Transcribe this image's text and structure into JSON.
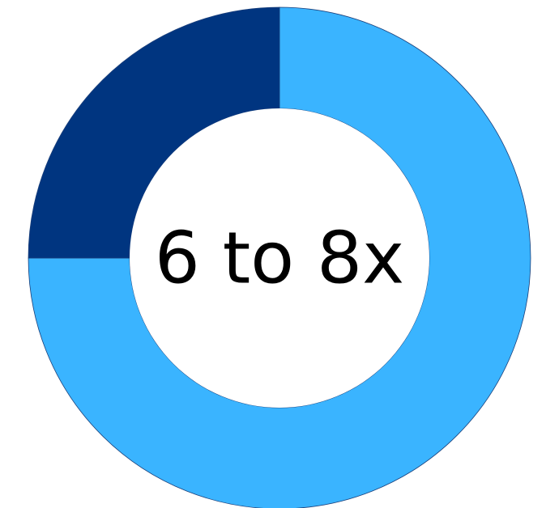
{
  "chart_data": {
    "type": "pie",
    "variant": "donut",
    "center_label": "6 to 8x",
    "slices": [
      {
        "value": 75,
        "color": "#3AB4FF"
      },
      {
        "value": 25,
        "color": "#003580"
      }
    ],
    "start_angle_deg": 0,
    "direction": "clockwise",
    "legend": "none"
  },
  "colors": {
    "background": "#FFFFFF",
    "primary": "#3AB4FF",
    "secondary": "#003580",
    "label": "#000000"
  }
}
